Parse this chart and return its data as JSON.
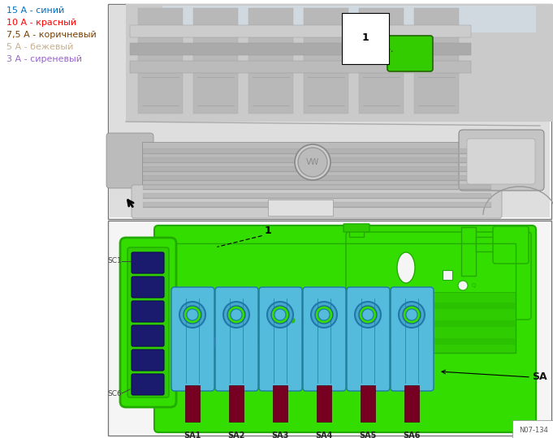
{
  "legend_items": [
    {
      "text": "15 А - синий",
      "color": "#0070C0"
    },
    {
      "text": "10 А - красный",
      "color": "#FF0000"
    },
    {
      "text": "7,5 А - коричневый",
      "color": "#7B3F00"
    },
    {
      "text": "5 А - бежевый",
      "color": "#C8B090"
    },
    {
      "text": "3 А - сиреневый",
      "color": "#9966CC"
    }
  ],
  "bg_color": "#FFFFFF",
  "legend_font_size": 8.0,
  "watermark_text": "N07-134",
  "green_board": "#33DD00",
  "green_board_dark": "#22AA00",
  "green_board_mid": "#2ECC00",
  "connector_blue": "#55BBDD",
  "connector_blue2": "#44AACC",
  "pin_dark_blue": "#1A1A6E",
  "pin_tab_red": "#770022",
  "car_gray": "#C8C8C8",
  "car_gray2": "#B8B8B8",
  "car_gray3": "#AAAAAA",
  "border_gray": "#888888"
}
